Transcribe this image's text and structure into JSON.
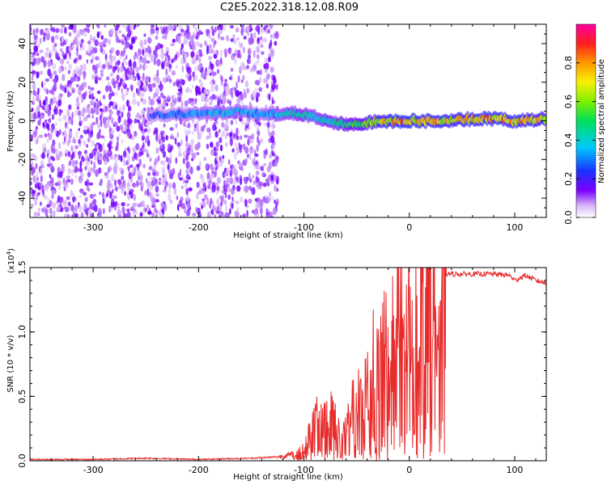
{
  "title": "C2E5.2022.318.12.08.R09",
  "colors": {
    "snr_line": "#e82c2c",
    "frame": "#000000"
  },
  "chart_data": [
    {
      "type": "heatmap",
      "xlabel": "Height of straight line (km)",
      "ylabel": "Frequency (Hz)",
      "xlim": [
        -360,
        130
      ],
      "ylim": [
        -50,
        50
      ],
      "x_ticks": [
        -300,
        -200,
        -100,
        0,
        100
      ],
      "x_tick_labels": [
        "-300",
        "-200",
        "-100",
        "0",
        "100"
      ],
      "y_ticks": [
        -40,
        -20,
        0,
        20,
        40
      ],
      "y_tick_labels": [
        "-40",
        "-20",
        "0",
        "20",
        "40"
      ],
      "colorbar": {
        "label": "Normalized spectral amplitude",
        "range": [
          0,
          1
        ],
        "ticks": [
          0.0,
          0.2,
          0.4,
          0.6,
          0.8
        ],
        "tick_labels": [
          "0.0",
          "0.2",
          "0.4",
          "0.6",
          "0.8"
        ]
      },
      "regions": [
        {
          "x": [
            -360,
            -125
          ],
          "freq": [
            -50,
            50
          ],
          "amplitude": 0.1
        },
        {
          "x": [
            -125,
            -40
          ],
          "freq": [
            -8,
            8
          ],
          "amplitude": 0.45
        },
        {
          "x": [
            -40,
            130
          ],
          "freq": [
            -3,
            3
          ],
          "amplitude": 0.9
        }
      ],
      "ridge": {
        "x": [
          -245,
          -180,
          -160,
          -140,
          -120,
          -110,
          -100,
          -90,
          -80,
          -70,
          -60,
          -50,
          -40,
          -30,
          -20,
          -10,
          0,
          20,
          40,
          60,
          80,
          100,
          130
        ],
        "freq": [
          3,
          4,
          5,
          3,
          4,
          4,
          3,
          2,
          0,
          -1,
          -2,
          -2,
          -1,
          0,
          0,
          0,
          0,
          0,
          0,
          1,
          1,
          0,
          1
        ],
        "amplitude": [
          0.3,
          0.4,
          0.4,
          0.35,
          0.45,
          0.5,
          0.5,
          0.45,
          0.5,
          0.5,
          0.55,
          0.6,
          0.7,
          0.8,
          0.85,
          0.9,
          0.9,
          0.85,
          0.8,
          0.85,
          0.9,
          0.85,
          0.8
        ]
      }
    },
    {
      "type": "line",
      "xlabel": "Height of straight line (km)",
      "ylabel": "SNR (10 * v/v)",
      "y_multiplier": "(x10",
      "y_multiplier_exp": "4",
      "y_multiplier_close": ")",
      "xlim": [
        -360,
        130
      ],
      "ylim": [
        0,
        1.5
      ],
      "x_ticks": [
        -300,
        -200,
        -100,
        0,
        100
      ],
      "x_tick_labels": [
        "-300",
        "-200",
        "-100",
        "0",
        "100"
      ],
      "y_ticks": [
        0.0,
        0.5,
        1.0,
        1.5
      ],
      "y_tick_labels": [
        "0.0",
        "0.5",
        "1.0",
        "1.5"
      ],
      "series": [
        {
          "x": [
            -360,
            -300,
            -250,
            -200,
            -150,
            -125,
            -110,
            -100,
            -95,
            -90,
            -85,
            -80,
            -75,
            -70,
            -65,
            -60,
            -55,
            -50,
            -45,
            -40,
            -35,
            -30,
            -25,
            -20,
            -15,
            -10,
            -5,
            0,
            10,
            20,
            30,
            40,
            60,
            80,
            95,
            100,
            110,
            120,
            130
          ],
          "y": [
            0.01,
            0.01,
            0.02,
            0.01,
            0.02,
            0.03,
            0.05,
            0.1,
            0.2,
            0.3,
            0.35,
            0.3,
            0.45,
            0.3,
            0.2,
            0.25,
            0.4,
            0.45,
            0.5,
            0.6,
            0.75,
            0.9,
            1.0,
            1.05,
            1.0,
            1.2,
            1.1,
            1.15,
            1.3,
            1.4,
            1.45,
            1.45,
            1.45,
            1.45,
            1.44,
            1.4,
            1.44,
            1.4,
            1.38
          ]
        }
      ]
    }
  ]
}
